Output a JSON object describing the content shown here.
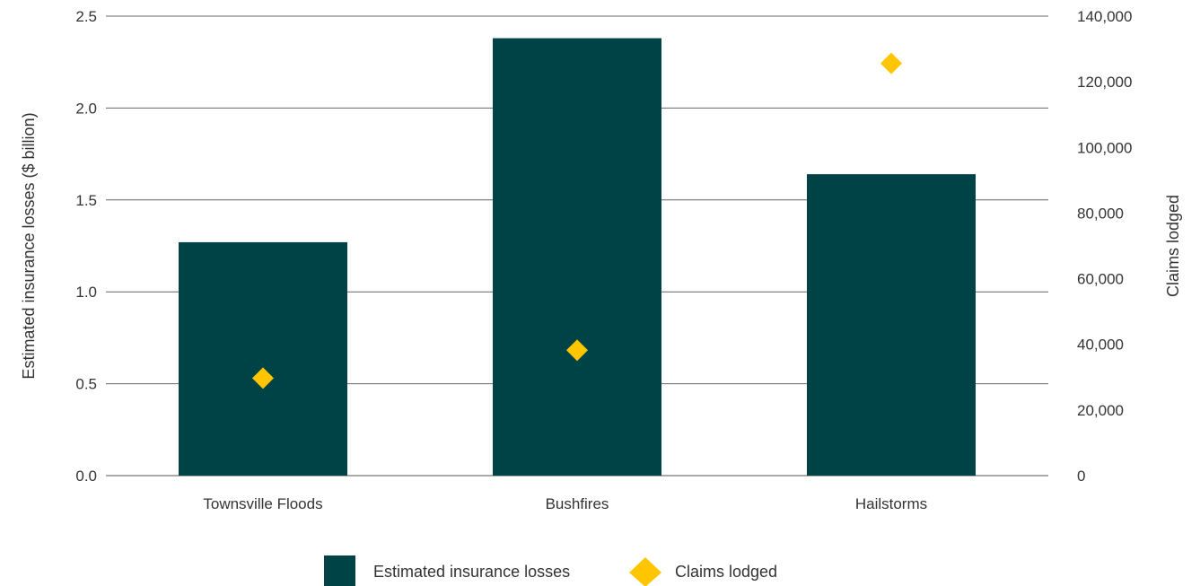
{
  "chart_data": {
    "type": "bar",
    "categories": [
      "Townsville Floods",
      "Bushfires",
      "Hailstorms"
    ],
    "series": [
      {
        "name": "Estimated insurance losses",
        "type": "bar",
        "axis": "left",
        "values": [
          1.27,
          2.38,
          1.64
        ],
        "color": "#004346"
      },
      {
        "name": "Claims lodged",
        "type": "scatter",
        "marker": "diamond",
        "axis": "right",
        "values": [
          29700,
          38200,
          125600
        ],
        "color": "#FFC600"
      }
    ],
    "ylabel": "Estimated insurance losses ($ billion)",
    "y2label": "Claims lodged",
    "ylim": [
      0,
      2.5
    ],
    "y2lim": [
      0,
      140000
    ],
    "yticks": [
      "0.0",
      "0.5",
      "1.0",
      "1.5",
      "2.0",
      "2.5"
    ],
    "y2ticks": [
      "0",
      "20,000",
      "40,000",
      "60,000",
      "80,000",
      "100,000",
      "120,000",
      "140,000"
    ],
    "grid": true,
    "legend_position": "bottom"
  }
}
